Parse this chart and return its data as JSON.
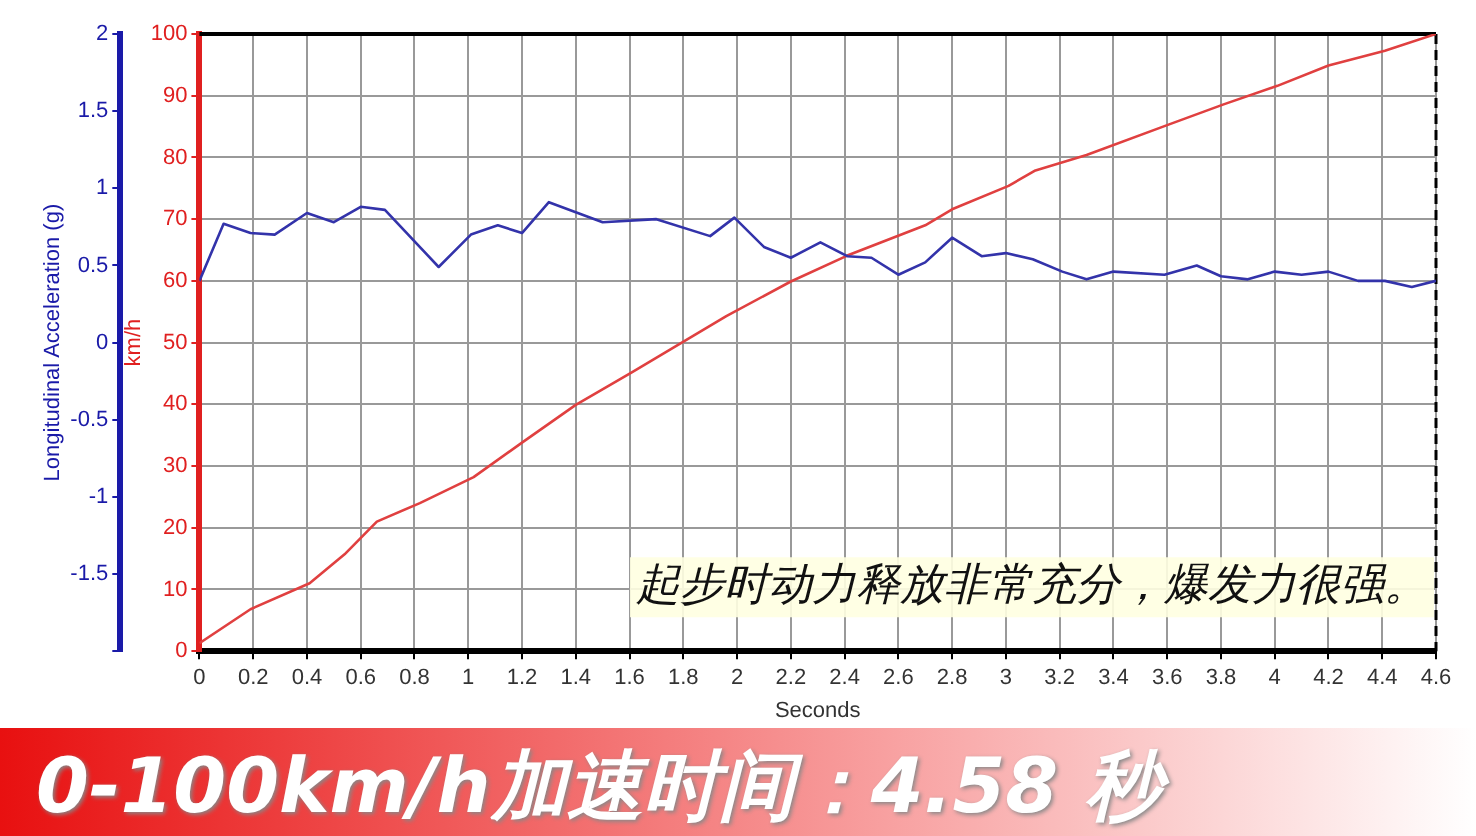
{
  "chart_data": {
    "type": "line",
    "xlabel": "Seconds",
    "ylabel": "Longitudinal Acceleration (g)",
    "y2label": "km/h",
    "annotations": [
      "起步时动力释放非常充分，爆发力很强。",
      "0-100km/h加速时间：4.58 秒"
    ],
    "xlim": [
      0,
      4.6
    ],
    "xticks": [
      0,
      0.2,
      0.4,
      0.6,
      0.8,
      1,
      1.2,
      1.4,
      1.6,
      1.8,
      2,
      2.2,
      2.4,
      2.6,
      2.8,
      3,
      3.2,
      3.4,
      3.6,
      3.8,
      4,
      4.2,
      4.4,
      4.6
    ],
    "ylim": [
      -2,
      2
    ],
    "yticks": [
      {
        "value": -2,
        "label": null
      },
      -1.5,
      -1,
      -0.5,
      0,
      0.5,
      1,
      1.5,
      2
    ],
    "y2lim": [
      0,
      100
    ],
    "y2ticks": [
      0,
      10,
      20,
      30,
      40,
      50,
      60,
      70,
      80,
      90,
      100
    ],
    "grid": true,
    "legend": false,
    "marker": "none",
    "line_style": "solid",
    "series": [
      {
        "axis": "y",
        "color": "#3333aa",
        "x": [
          0,
          0.09,
          0.19,
          0.28,
          0.4,
          0.5,
          0.6,
          0.69,
          0.89,
          1.01,
          1.11,
          1.2,
          1.3,
          1.5,
          1.7,
          1.9,
          1.99,
          2.1,
          2.2,
          2.31,
          2.41,
          2.5,
          2.6,
          2.7,
          2.8,
          2.91,
          3,
          3.1,
          3.21,
          3.3,
          3.4,
          3.59,
          3.71,
          3.8,
          3.9,
          4,
          4.1,
          4.2,
          4.31,
          4.41,
          4.51,
          4.6
        ],
        "values": [
          0.4,
          0.77,
          0.71,
          0.7,
          0.84,
          0.78,
          0.88,
          0.86,
          0.49,
          0.7,
          0.76,
          0.71,
          0.91,
          0.78,
          0.8,
          0.69,
          0.81,
          0.62,
          0.55,
          0.65,
          0.56,
          0.55,
          0.44,
          0.52,
          0.68,
          0.56,
          0.58,
          0.54,
          0.46,
          0.41,
          0.46,
          0.44,
          0.5,
          0.43,
          0.41,
          0.46,
          0.44,
          0.46,
          0.4,
          0.4,
          0.36,
          0.4
        ]
      },
      {
        "axis": "y2",
        "color": "#e04040",
        "x": [
          0,
          0.19,
          0.41,
          0.54,
          0.66,
          0.82,
          1.02,
          1.2,
          1.4,
          1.61,
          1.81,
          1.96,
          2.2,
          2.41,
          2.7,
          2.8,
          3.01,
          3.11,
          3.3,
          3.61,
          3.81,
          4.01,
          4.2,
          4.41,
          4.6
        ],
        "values": [
          1.3,
          6.8,
          11,
          15.7,
          21,
          24,
          28.2,
          33.8,
          39.9,
          45.2,
          50.4,
          54.3,
          59.9,
          64.1,
          69,
          71.6,
          75.4,
          77.9,
          80.4,
          85.4,
          88.6,
          91.6,
          94.9,
          97.3,
          100
        ]
      }
    ]
  }
}
